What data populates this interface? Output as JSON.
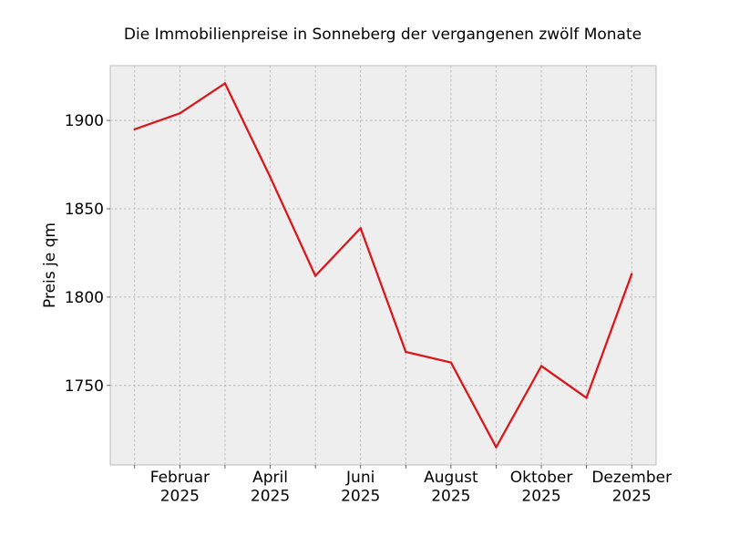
{
  "chart_data": {
    "type": "line",
    "title": "Die Immobilienpreise in Sonneberg der vergangenen zwölf Monate",
    "xlabel": "",
    "ylabel": "Preis je qm",
    "x": [
      "2025-01",
      "2025-02",
      "2025-03",
      "2025-04",
      "2025-05",
      "2025-06",
      "2025-07",
      "2025-08",
      "2025-09",
      "2025-10",
      "2025-11",
      "2025-12"
    ],
    "series": [
      {
        "values": [
          1895,
          1904,
          1921,
          1868,
          1812,
          1839,
          1769,
          1763,
          1715,
          1761,
          1743,
          1813
        ]
      }
    ],
    "x_ticks": [
      {
        "x": "2025-02",
        "label": [
          "Februar",
          "2025"
        ]
      },
      {
        "x": "2025-04",
        "label": [
          "April",
          "2025"
        ]
      },
      {
        "x": "2025-06",
        "label": [
          "Juni",
          "2025"
        ]
      },
      {
        "x": "2025-08",
        "label": [
          "August",
          "2025"
        ]
      },
      {
        "x": "2025-10",
        "label": [
          "Oktober",
          "2025"
        ]
      },
      {
        "x": "2025-12",
        "label": [
          "Dezember",
          "2025"
        ]
      }
    ],
    "y_ticks": [
      1750,
      1800,
      1850,
      1900
    ],
    "ylim": [
      1705,
      1931
    ],
    "grid": true,
    "colors": {
      "line": "#d7191c",
      "plot_background": "#eeeeee",
      "grid": "#b0b0b0",
      "frame": "#bcbcbc"
    }
  }
}
